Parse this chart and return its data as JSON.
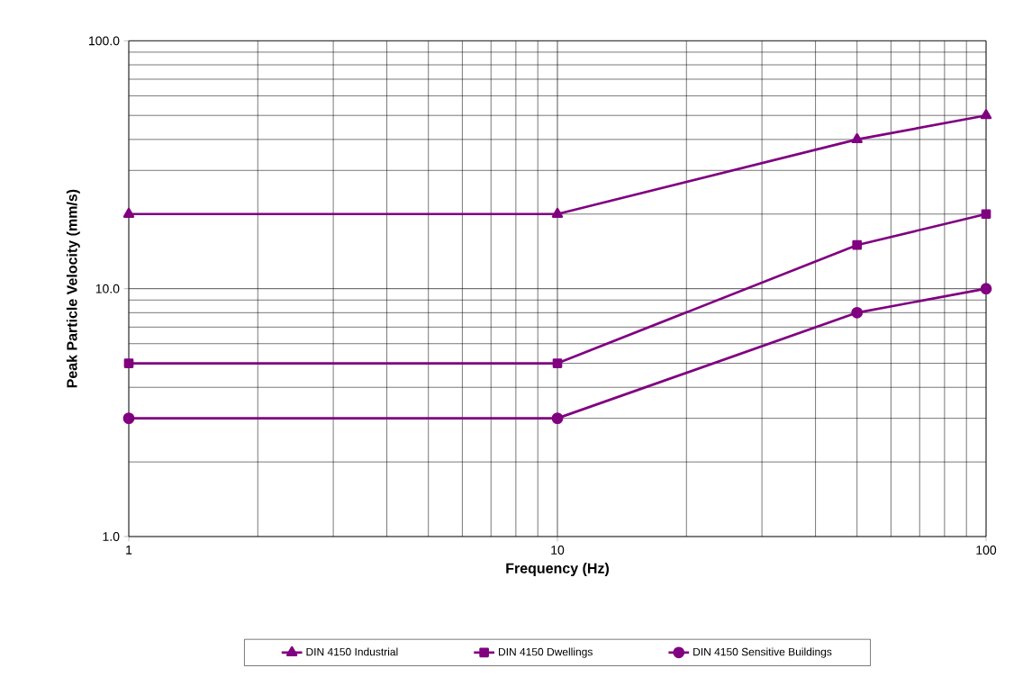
{
  "chart_data": {
    "type": "line",
    "xlabel": "Frequency (Hz)",
    "ylabel": "Peak Particle Velocity (mm/s)",
    "log": "xy",
    "xlim": [
      1,
      100
    ],
    "ylim": [
      1,
      100
    ],
    "xticks": [
      1,
      10,
      100
    ],
    "yticks": [
      {
        "value": 1,
        "label": "1.0"
      },
      {
        "value": 10,
        "label": "10.0"
      },
      {
        "value": 100,
        "label": "100.0"
      }
    ],
    "grid": true,
    "legend": "bottom",
    "line_style": "solid",
    "x": [
      1,
      10,
      50,
      100
    ],
    "series": [
      {
        "name": "DIN 4150 Industrial",
        "color": "#800080",
        "marker": "triangle",
        "values": [
          20,
          20,
          40,
          50
        ]
      },
      {
        "name": "DIN 4150 Dwellings",
        "color": "#800080",
        "marker": "square",
        "values": [
          5,
          5,
          15,
          20
        ]
      },
      {
        "name": "DIN 4150 Sensitive Buildings",
        "color": "#800080",
        "marker": "circle",
        "values": [
          3,
          3,
          8,
          10
        ]
      }
    ]
  }
}
